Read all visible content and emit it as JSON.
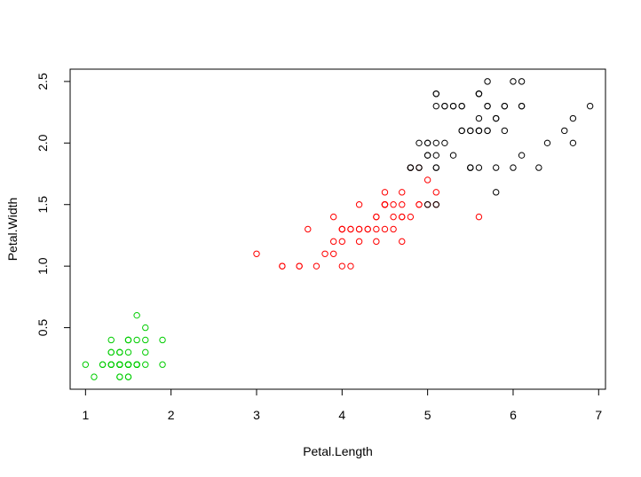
{
  "chart_data": {
    "type": "scatter",
    "title": "",
    "xlabel": "Petal.Length",
    "ylabel": "Petal.Width",
    "xlim": [
      0.82,
      7.08
    ],
    "ylim": [
      -0.0,
      2.6
    ],
    "xticks": [
      1,
      2,
      3,
      4,
      5,
      6,
      7
    ],
    "yticks": [
      0.5,
      1.0,
      1.5,
      2.0,
      2.5
    ],
    "xtick_labels": [
      "1",
      "2",
      "3",
      "4",
      "5",
      "6",
      "7"
    ],
    "ytick_labels": [
      "0.5",
      "1.0",
      "1.5",
      "2.0",
      "2.5"
    ],
    "grid": false,
    "legend": "none",
    "marker": "open-circle",
    "series": [
      {
        "color": "#00cd00",
        "points": [
          [
            1.4,
            0.2
          ],
          [
            1.4,
            0.2
          ],
          [
            1.3,
            0.2
          ],
          [
            1.5,
            0.2
          ],
          [
            1.4,
            0.2
          ],
          [
            1.7,
            0.4
          ],
          [
            1.4,
            0.3
          ],
          [
            1.5,
            0.2
          ],
          [
            1.4,
            0.2
          ],
          [
            1.5,
            0.1
          ],
          [
            1.5,
            0.2
          ],
          [
            1.6,
            0.2
          ],
          [
            1.4,
            0.1
          ],
          [
            1.1,
            0.1
          ],
          [
            1.2,
            0.2
          ],
          [
            1.5,
            0.4
          ],
          [
            1.3,
            0.4
          ],
          [
            1.4,
            0.3
          ],
          [
            1.7,
            0.3
          ],
          [
            1.5,
            0.3
          ],
          [
            1.7,
            0.2
          ],
          [
            1.5,
            0.4
          ],
          [
            1.0,
            0.2
          ],
          [
            1.7,
            0.5
          ],
          [
            1.9,
            0.2
          ],
          [
            1.6,
            0.2
          ],
          [
            1.6,
            0.4
          ],
          [
            1.5,
            0.2
          ],
          [
            1.4,
            0.2
          ],
          [
            1.6,
            0.2
          ],
          [
            1.6,
            0.2
          ],
          [
            1.5,
            0.4
          ],
          [
            1.5,
            0.1
          ],
          [
            1.4,
            0.2
          ],
          [
            1.5,
            0.2
          ],
          [
            1.2,
            0.2
          ],
          [
            1.3,
            0.2
          ],
          [
            1.4,
            0.1
          ],
          [
            1.3,
            0.2
          ],
          [
            1.5,
            0.2
          ],
          [
            1.3,
            0.3
          ],
          [
            1.3,
            0.3
          ],
          [
            1.3,
            0.2
          ],
          [
            1.6,
            0.6
          ],
          [
            1.9,
            0.4
          ],
          [
            1.4,
            0.3
          ],
          [
            1.6,
            0.2
          ],
          [
            1.4,
            0.2
          ],
          [
            1.5,
            0.2
          ],
          [
            1.4,
            0.2
          ]
        ]
      },
      {
        "color": "#ff0000",
        "points": [
          [
            4.7,
            1.4
          ],
          [
            4.5,
            1.5
          ],
          [
            4.9,
            1.5
          ],
          [
            4.0,
            1.3
          ],
          [
            4.6,
            1.5
          ],
          [
            4.5,
            1.3
          ],
          [
            4.7,
            1.6
          ],
          [
            3.3,
            1.0
          ],
          [
            4.6,
            1.3
          ],
          [
            3.9,
            1.4
          ],
          [
            3.5,
            1.0
          ],
          [
            4.2,
            1.5
          ],
          [
            4.0,
            1.0
          ],
          [
            4.7,
            1.4
          ],
          [
            3.6,
            1.3
          ],
          [
            4.4,
            1.4
          ],
          [
            4.5,
            1.5
          ],
          [
            4.1,
            1.0
          ],
          [
            4.5,
            1.5
          ],
          [
            3.9,
            1.1
          ],
          [
            4.8,
            1.8
          ],
          [
            4.0,
            1.3
          ],
          [
            4.9,
            1.5
          ],
          [
            4.7,
            1.2
          ],
          [
            4.3,
            1.3
          ],
          [
            4.4,
            1.4
          ],
          [
            4.8,
            1.4
          ],
          [
            5.0,
            1.7
          ],
          [
            4.5,
            1.5
          ],
          [
            3.5,
            1.0
          ],
          [
            3.8,
            1.1
          ],
          [
            3.7,
            1.0
          ],
          [
            3.9,
            1.2
          ],
          [
            5.1,
            1.6
          ],
          [
            4.5,
            1.5
          ],
          [
            4.5,
            1.6
          ],
          [
            4.7,
            1.5
          ],
          [
            4.4,
            1.3
          ],
          [
            4.1,
            1.3
          ],
          [
            4.0,
            1.3
          ],
          [
            4.4,
            1.2
          ],
          [
            4.6,
            1.4
          ],
          [
            4.0,
            1.2
          ],
          [
            3.3,
            1.0
          ],
          [
            4.2,
            1.3
          ],
          [
            4.2,
            1.2
          ],
          [
            4.2,
            1.3
          ],
          [
            4.3,
            1.3
          ],
          [
            3.0,
            1.1
          ],
          [
            4.1,
            1.3
          ],
          [
            5.6,
            1.4
          ],
          [
            5.0,
            1.5
          ],
          [
            5.1,
            1.5
          ],
          [
            4.9,
            1.8
          ]
        ]
      },
      {
        "color": "#000000",
        "points": [
          [
            6.0,
            2.5
          ],
          [
            5.1,
            1.9
          ],
          [
            5.9,
            2.1
          ],
          [
            5.6,
            1.8
          ],
          [
            5.8,
            2.2
          ],
          [
            6.6,
            2.1
          ],
          [
            6.3,
            1.8
          ],
          [
            5.8,
            1.8
          ],
          [
            6.1,
            2.5
          ],
          [
            5.1,
            2.0
          ],
          [
            5.3,
            1.9
          ],
          [
            5.5,
            2.1
          ],
          [
            5.0,
            2.0
          ],
          [
            5.1,
            2.4
          ],
          [
            5.3,
            2.3
          ],
          [
            5.5,
            1.8
          ],
          [
            6.7,
            2.2
          ],
          [
            6.9,
            2.3
          ],
          [
            5.0,
            1.5
          ],
          [
            5.7,
            2.3
          ],
          [
            4.9,
            2.0
          ],
          [
            6.7,
            2.0
          ],
          [
            4.9,
            1.8
          ],
          [
            5.7,
            2.1
          ],
          [
            6.0,
            1.8
          ],
          [
            4.8,
            1.8
          ],
          [
            4.9,
            1.8
          ],
          [
            5.6,
            2.1
          ],
          [
            5.8,
            1.6
          ],
          [
            6.1,
            1.9
          ],
          [
            6.4,
            2.0
          ],
          [
            5.6,
            2.2
          ],
          [
            5.1,
            1.5
          ],
          [
            5.6,
            2.4
          ],
          [
            5.5,
            1.8
          ],
          [
            4.8,
            1.8
          ],
          [
            5.4,
            2.1
          ],
          [
            5.6,
            2.4
          ],
          [
            5.1,
            2.3
          ],
          [
            5.9,
            2.3
          ],
          [
            5.7,
            2.5
          ],
          [
            5.2,
            2.3
          ],
          [
            5.0,
            1.9
          ],
          [
            5.2,
            2.0
          ],
          [
            5.4,
            2.3
          ],
          [
            5.1,
            1.8
          ],
          [
            6.1,
            2.3
          ],
          [
            5.6,
            2.1
          ],
          [
            5.5,
            1.8
          ],
          [
            5.8,
            2.2
          ],
          [
            5.2,
            2.3
          ],
          [
            5.0,
            1.9
          ],
          [
            5.7,
            2.1
          ],
          [
            6.1,
            2.3
          ],
          [
            5.3,
            2.3
          ],
          [
            5.4,
            2.1
          ],
          [
            5.6,
            2.4
          ],
          [
            5.1,
            1.8
          ],
          [
            5.9,
            2.3
          ],
          [
            5.7,
            2.3
          ],
          [
            5.6,
            2.1
          ],
          [
            5.5,
            2.1
          ],
          [
            5.1,
            2.4
          ],
          [
            5.4,
            2.3
          ],
          [
            5.0,
            2.0
          ],
          [
            4.8,
            1.8
          ]
        ]
      }
    ]
  }
}
